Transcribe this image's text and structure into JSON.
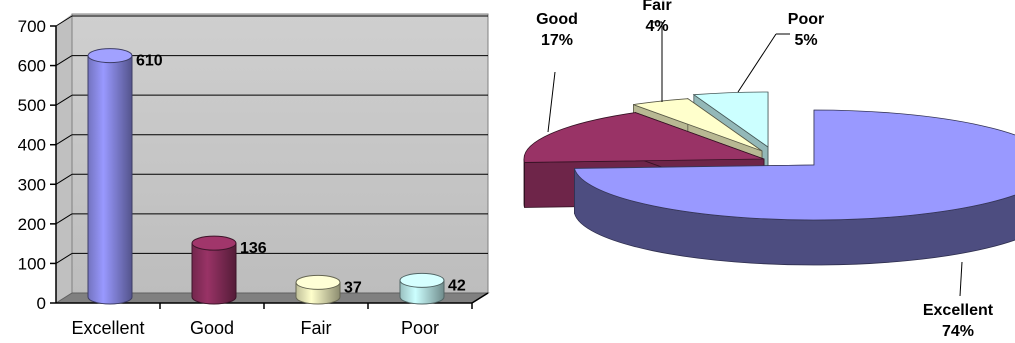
{
  "chart_data": [
    {
      "type": "bar",
      "categories": [
        "Excellent",
        "Good",
        "Fair",
        "Poor"
      ],
      "values": [
        610,
        136,
        37,
        42
      ],
      "ylim": [
        0,
        700
      ],
      "yticks": [
        "0",
        "100",
        "200",
        "300",
        "400",
        "500",
        "600",
        "700"
      ],
      "grid": true,
      "colors": [
        "#9999ff",
        "#993366",
        "#ffffcc",
        "#ccffff"
      ]
    },
    {
      "type": "pie",
      "categories": [
        "Excellent",
        "Good",
        "Fair",
        "Poor"
      ],
      "percent_labels": [
        "74%",
        "17%",
        "4%",
        "5%"
      ],
      "values": [
        74,
        17,
        4,
        5
      ],
      "exploded": true,
      "colors": [
        "#9999ff",
        "#993366",
        "#ffffcc",
        "#ccffff"
      ]
    }
  ]
}
